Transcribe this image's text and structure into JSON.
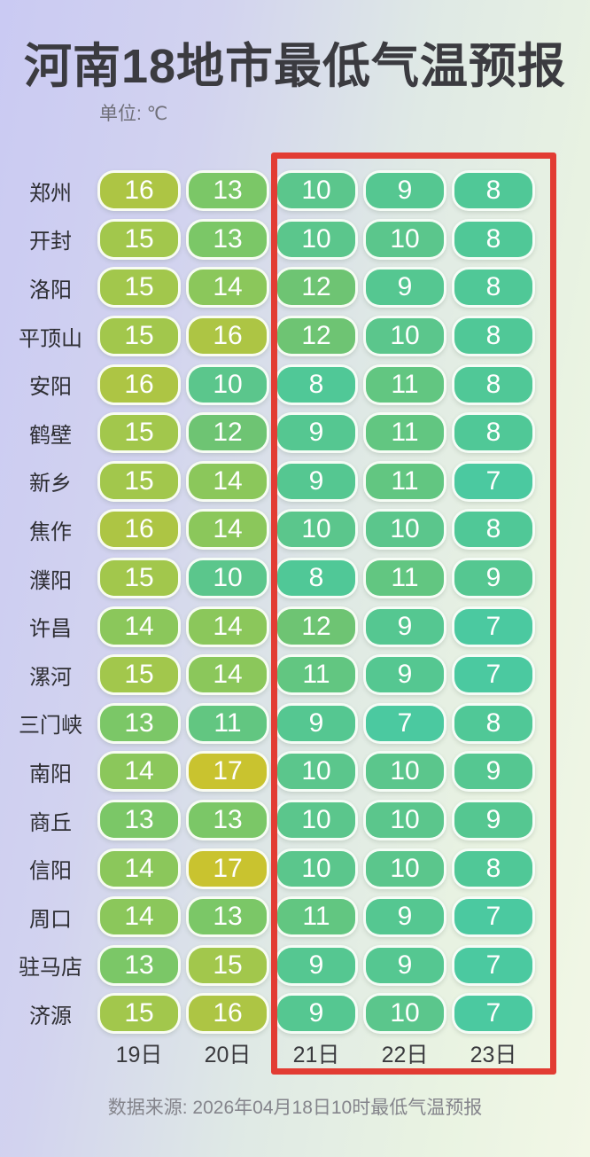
{
  "chart_data": {
    "type": "heatmap",
    "title": "河南18地市最低气温预报",
    "unit_label": "单位: ℃",
    "columns": [
      "19日",
      "20日",
      "21日",
      "22日",
      "23日"
    ],
    "rows": [
      {
        "city": "郑州",
        "values": [
          16,
          13,
          10,
          9,
          8
        ]
      },
      {
        "city": "开封",
        "values": [
          15,
          13,
          10,
          10,
          8
        ]
      },
      {
        "city": "洛阳",
        "values": [
          15,
          14,
          12,
          9,
          8
        ]
      },
      {
        "city": "平顶山",
        "values": [
          15,
          16,
          12,
          10,
          8
        ]
      },
      {
        "city": "安阳",
        "values": [
          16,
          10,
          8,
          11,
          8
        ]
      },
      {
        "city": "鹤壁",
        "values": [
          15,
          12,
          9,
          11,
          8
        ]
      },
      {
        "city": "新乡",
        "values": [
          15,
          14,
          9,
          11,
          7
        ]
      },
      {
        "city": "焦作",
        "values": [
          16,
          14,
          10,
          10,
          8
        ]
      },
      {
        "city": "濮阳",
        "values": [
          15,
          10,
          8,
          11,
          9
        ]
      },
      {
        "city": "许昌",
        "values": [
          14,
          14,
          12,
          9,
          7
        ]
      },
      {
        "city": "漯河",
        "values": [
          15,
          14,
          11,
          9,
          7
        ]
      },
      {
        "city": "三门峡",
        "values": [
          13,
          11,
          9,
          7,
          8
        ]
      },
      {
        "city": "南阳",
        "values": [
          14,
          17,
          10,
          10,
          9
        ]
      },
      {
        "city": "商丘",
        "values": [
          13,
          13,
          10,
          10,
          9
        ]
      },
      {
        "city": "信阳",
        "values": [
          14,
          17,
          10,
          10,
          8
        ]
      },
      {
        "city": "周口",
        "values": [
          14,
          13,
          11,
          9,
          7
        ]
      },
      {
        "city": "驻马店",
        "values": [
          13,
          15,
          9,
          9,
          7
        ]
      },
      {
        "city": "济源",
        "values": [
          15,
          16,
          9,
          10,
          7
        ]
      }
    ],
    "highlighted_columns": [
      "21日",
      "22日",
      "23日"
    ],
    "source": "数据来源: 2026年04月18日10时最低气温预报",
    "highlight_border_color": "#e23c33",
    "pill_text_color": "#ffffff",
    "color_scale": {
      "7": "#4bc9a0",
      "8": "#50c897",
      "9": "#55c791",
      "10": "#5bc68c",
      "11": "#62c681",
      "12": "#6ec473",
      "13": "#7bc767",
      "14": "#8bc75b",
      "15": "#a2c74c",
      "16": "#adc544",
      "17": "#c9c32f"
    }
  }
}
